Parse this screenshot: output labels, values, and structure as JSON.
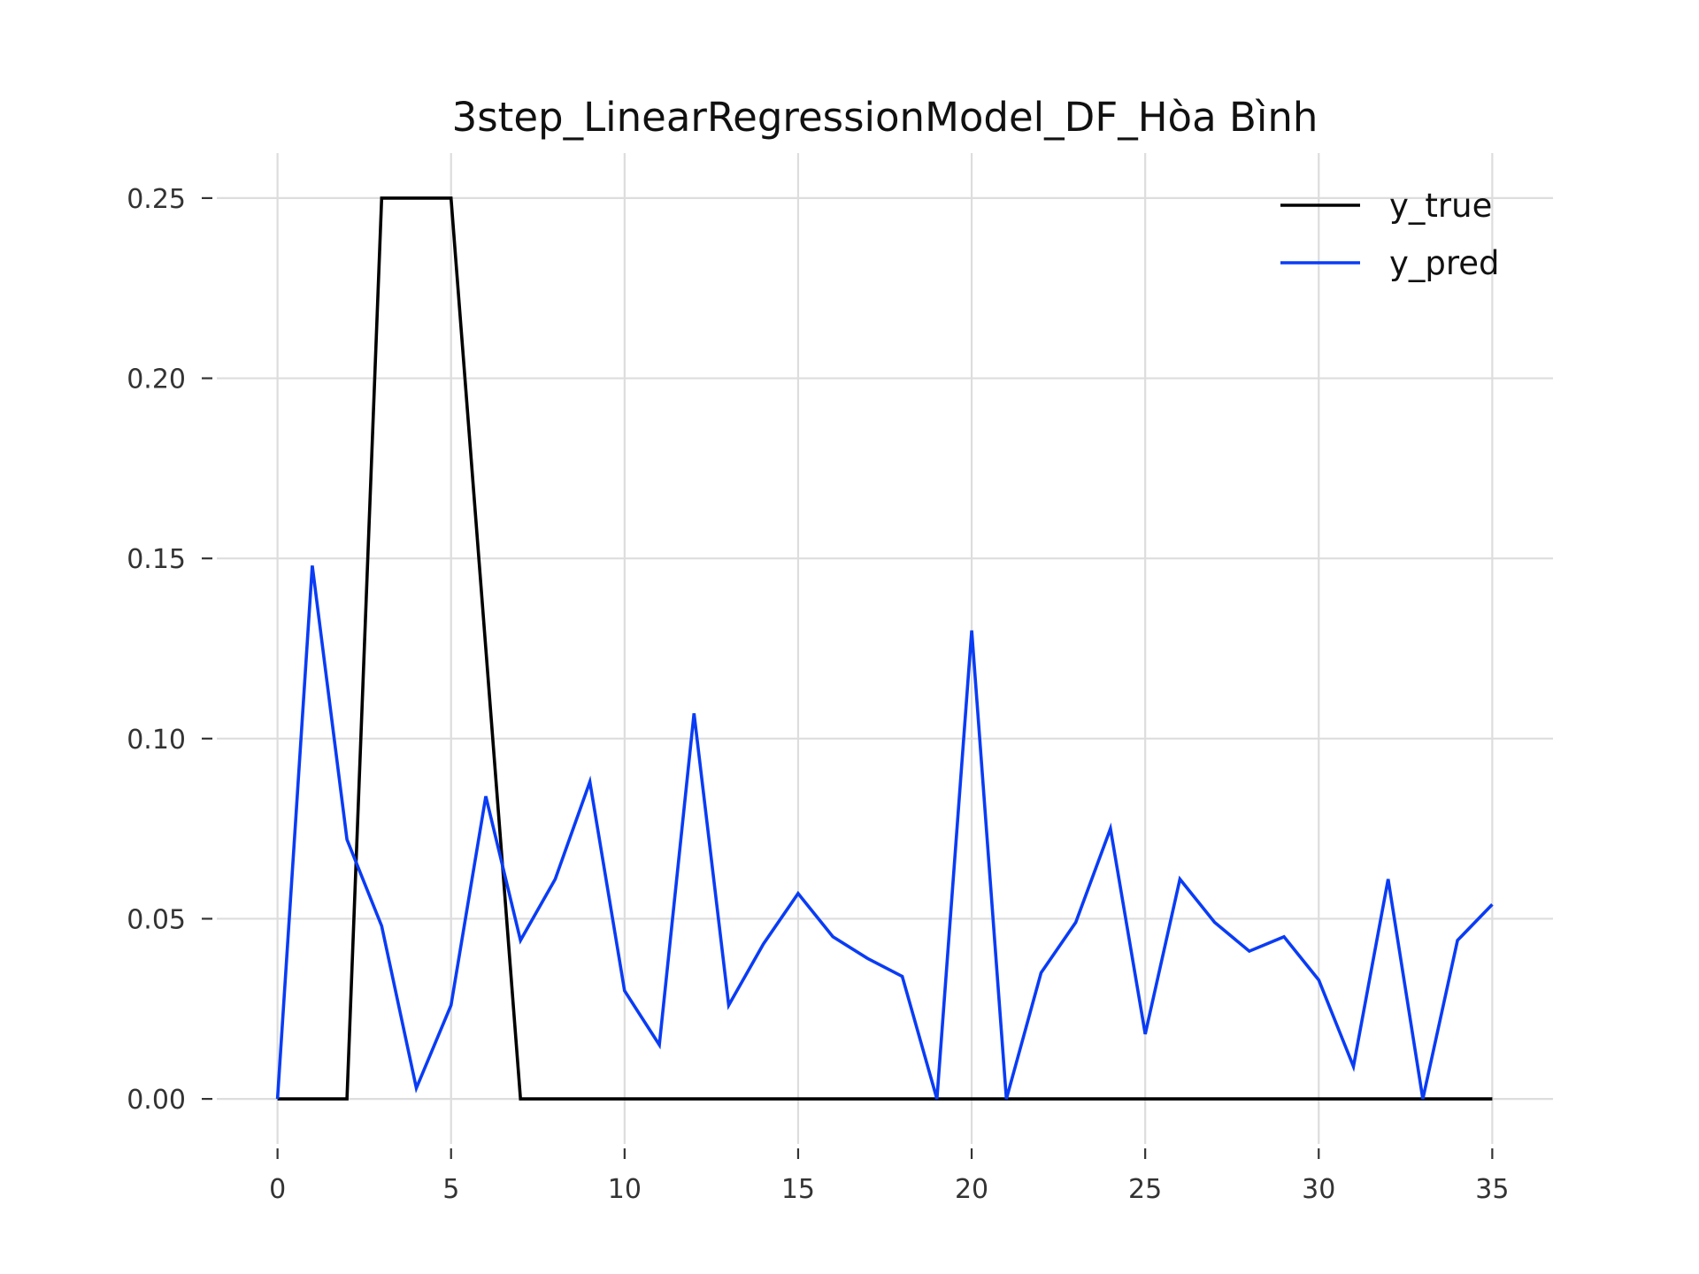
{
  "chart_data": {
    "type": "line",
    "title": "3step_LinearRegressionModel_DF_Hòa Bình",
    "xlabel": "",
    "ylabel": "",
    "xlim": [
      -1.75,
      36.75
    ],
    "ylim": [
      -0.0125,
      0.2625
    ],
    "x_ticks": [
      0,
      5,
      10,
      15,
      20,
      25,
      30,
      35
    ],
    "x_tick_labels": [
      "0",
      "5",
      "10",
      "15",
      "20",
      "25",
      "30",
      "35"
    ],
    "y_ticks": [
      0.0,
      0.05,
      0.1,
      0.15,
      0.2,
      0.25
    ],
    "y_tick_labels": [
      "0.00",
      "0.05",
      "0.10",
      "0.15",
      "0.20",
      "0.25"
    ],
    "grid": true,
    "legend_position": "top-right",
    "x": [
      0,
      1,
      2,
      3,
      4,
      5,
      6,
      7,
      8,
      9,
      10,
      11,
      12,
      13,
      14,
      15,
      16,
      17,
      18,
      19,
      20,
      21,
      22,
      23,
      24,
      25,
      26,
      27,
      28,
      29,
      30,
      31,
      32,
      33,
      34,
      35
    ],
    "series": [
      {
        "name": "y_true",
        "color": "#000000",
        "values": [
          0,
          0,
          0,
          0.25,
          0.25,
          0.25,
          0.125,
          0,
          0,
          0,
          0,
          0,
          0,
          0,
          0,
          0,
          0,
          0,
          0,
          0,
          0,
          0,
          0,
          0,
          0,
          0,
          0,
          0,
          0,
          0,
          0,
          0,
          0,
          0,
          0,
          0
        ]
      },
      {
        "name": "y_pred",
        "color": "#0a3cf5",
        "values": [
          0.0,
          0.148,
          0.072,
          0.048,
          0.003,
          0.026,
          0.084,
          0.044,
          0.061,
          0.088,
          0.03,
          0.015,
          0.107,
          0.026,
          0.043,
          0.057,
          0.045,
          0.039,
          0.034,
          0.0,
          0.13,
          0.0,
          0.035,
          0.049,
          0.075,
          0.018,
          0.061,
          0.049,
          0.041,
          0.045,
          0.033,
          0.009,
          0.061,
          0.0,
          0.044,
          0.054
        ]
      }
    ]
  }
}
